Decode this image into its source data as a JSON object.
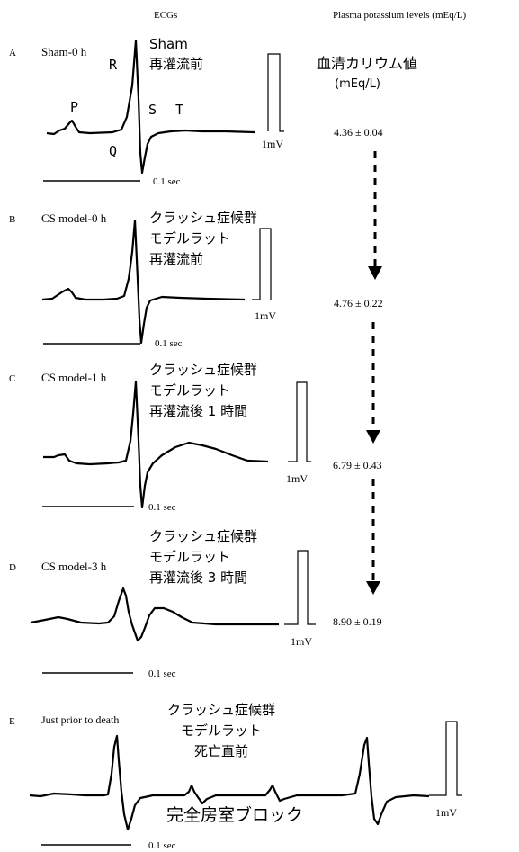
{
  "header": {
    "ecgs": "ECGs",
    "potassium": "Plasma potassium levels (mEq/L)"
  },
  "potassium_label": {
    "line1": "血清カリウム値",
    "line2": "(mEq/L)"
  },
  "panels": [
    {
      "letter": "A",
      "title": "Sham-0 h",
      "note": "Sham\n再灌流前",
      "value": "4.36 ± 0.04",
      "time": "0.1 sec",
      "scale": "1mV",
      "waves": {
        "P": "P",
        "R": "R",
        "Q": "Q",
        "S": "S",
        "T": "T"
      }
    },
    {
      "letter": "B",
      "title": "CS model-0 h",
      "note": "クラッシュ症候群\nモデルラット\n再灌流前",
      "value": "4.76 ± 0.22",
      "time": "0.1 sec",
      "scale": "1mV"
    },
    {
      "letter": "C",
      "title": "CS model-1 h",
      "note": "クラッシュ症候群\nモデルラット\n再灌流後 1 時間",
      "value": "6.79 ± 0.43",
      "time": "0.1 sec",
      "scale": "1mV"
    },
    {
      "letter": "D",
      "title": "CS model-3 h",
      "note": "クラッシュ症候群\nモデルラット\n再灌流後 3 時間",
      "value": "8.90 ± 0.19",
      "time": "0.1 sec",
      "scale": "1mV"
    },
    {
      "letter": "E",
      "title": "Just prior to death",
      "note": "クラッシュ症候群\nモデルラット\n死亡直前",
      "block_label": "完全房室ブロック",
      "time": "0.1 sec",
      "scale": "1mV"
    }
  ]
}
